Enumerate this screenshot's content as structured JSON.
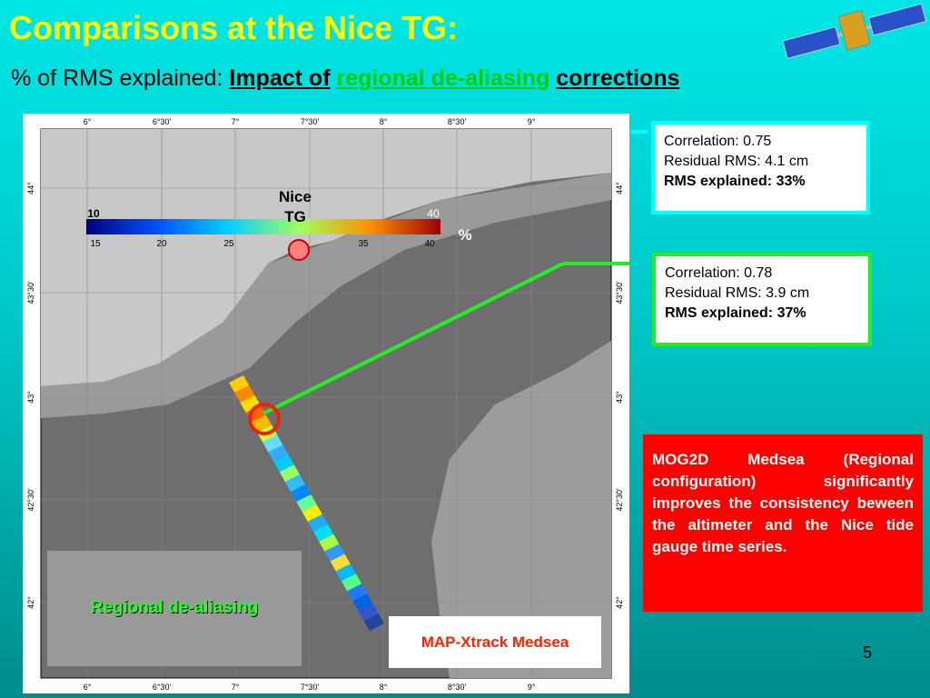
{
  "header": {
    "title": "Comparisons at the Nice TG:",
    "subtitle": {
      "prefix": "% of RMS explained:",
      "bold_start": "Impact of",
      "highlight": "regional de-aliasing",
      "bold_end": "corrections"
    }
  },
  "map": {
    "lon_labels": [
      "6°",
      "6°30'",
      "7°",
      "7°30'",
      "8°",
      "8°30'",
      "9°"
    ],
    "lat_labels": [
      "44°",
      "43°30'",
      "43°",
      "42°30'",
      "42°"
    ],
    "colorbar": {
      "min_label": "10",
      "max_label": "40",
      "tick_labels": [
        "15",
        "20",
        "25",
        "35",
        "40"
      ],
      "unit": "%"
    },
    "station_label": "Nice TG",
    "inset_label": "Regional de-aliasing",
    "track_label": "MAP-Xtrack Medsea"
  },
  "stats": [
    {
      "correlation": "Correlation:  0.75",
      "residual": "Residual RMS: 4.1 cm",
      "explained": "RMS explained: 33%"
    },
    {
      "correlation": "Correlation:  0.78",
      "residual": "Residual RMS: 3.9 cm",
      "explained": "RMS explained: 37%"
    }
  ],
  "note": "MOG2D Medsea (Regional configuration) significantly improves the consistency beween the altimeter and the Nice tide gauge time series.",
  "page_number": "5"
}
